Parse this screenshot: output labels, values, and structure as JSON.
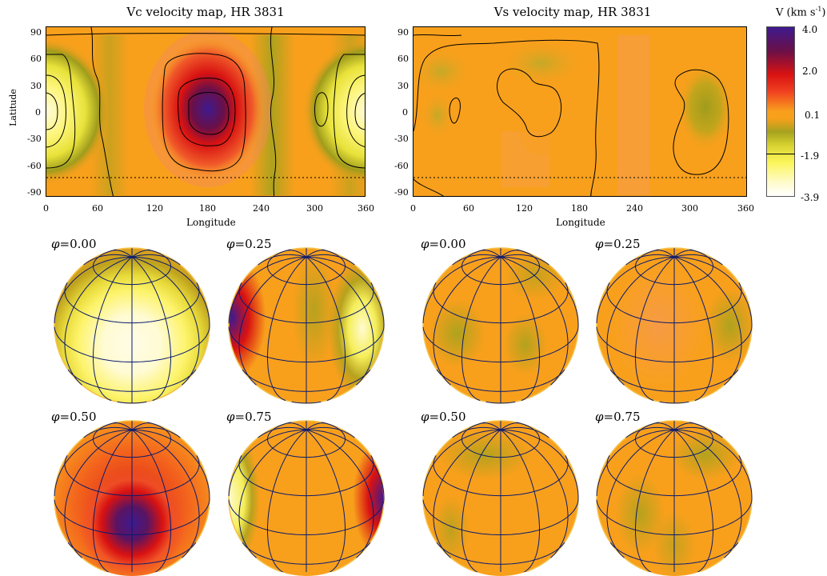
{
  "chart_data": [
    {
      "type": "heatmap",
      "title": "Vc velocity map, HR 3831",
      "xlabel": "Longitude",
      "ylabel": "Latitude",
      "xlim": [
        0,
        360
      ],
      "ylim": [
        -90,
        90
      ],
      "x_ticks": [
        "0",
        "60",
        "120",
        "180",
        "240",
        "300",
        "360"
      ],
      "y_ticks": [
        "90",
        "60",
        "30",
        "0",
        "-30",
        "-60",
        "-90"
      ],
      "dotted_latitude": -70,
      "features": [
        {
          "kind": "positive",
          "lon": 175,
          "lat": 5,
          "peak": 4.0
        },
        {
          "kind": "negative",
          "lon": 10,
          "lat": 5,
          "peak": -3.9
        },
        {
          "kind": "negative",
          "lon": 345,
          "lat": 5,
          "peak": -3.9
        }
      ]
    },
    {
      "type": "heatmap",
      "title": "Vs velocity map, HR 3831",
      "xlabel": "Longitude",
      "ylabel": "",
      "xlim": [
        0,
        360
      ],
      "ylim": [
        -90,
        90
      ],
      "x_ticks": [
        "0",
        "60",
        "120",
        "180",
        "240",
        "300",
        "360"
      ],
      "y_ticks": [
        "90",
        "60",
        "30",
        "0",
        "-30",
        "-60",
        "-90"
      ],
      "dotted_latitude": -70,
      "features": [
        {
          "kind": "negative",
          "lon": 140,
          "lat": 55,
          "peak": -1.5
        },
        {
          "kind": "negative",
          "lon": 310,
          "lat": 10,
          "peak": -1.5
        },
        {
          "kind": "negative",
          "lon": 25,
          "lat": 5,
          "peak": -1.0
        }
      ]
    }
  ],
  "colorbar": {
    "title": "V (km s",
    "title_sup": "-1",
    "title_end": ")",
    "ticks": [
      "4.0",
      "2.0",
      "0.1",
      "-1.9",
      "-3.9"
    ],
    "min": -3.9,
    "max": 4.0
  },
  "globes": {
    "vc": [
      {
        "phase_label": "=0.00",
        "phase": 0.0
      },
      {
        "phase_label": "=0.25",
        "phase": 0.25
      },
      {
        "phase_label": "=0.50",
        "phase": 0.5
      },
      {
        "phase_label": "=0.75",
        "phase": 0.75
      }
    ],
    "vs": [
      {
        "phase_label": "=0.00",
        "phase": 0.0
      },
      {
        "phase_label": "=0.25",
        "phase": 0.25
      },
      {
        "phase_label": "=0.50",
        "phase": 0.5
      },
      {
        "phase_label": "=0.75",
        "phase": 0.75
      }
    ],
    "phi_symbol": "φ"
  },
  "colors": {
    "background_orange": "#f8a01c",
    "purple": "#4b1a8c",
    "red": "#d91010",
    "olive": "#a6a21e",
    "yellow": "#fbf55a",
    "pale": "#fffde6",
    "grid_line": "#0a1a6e"
  }
}
